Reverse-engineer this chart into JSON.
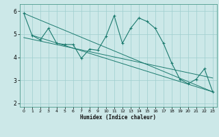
{
  "xlabel": "Humidex (Indice chaleur)",
  "ylabel": "",
  "background_color": "#cce8e8",
  "grid_color": "#9dcece",
  "line_color": "#1a7a6e",
  "xlim": [
    -0.5,
    23.5
  ],
  "ylim": [
    1.85,
    6.3
  ],
  "yticks": [
    2,
    3,
    4,
    5,
    6
  ],
  "xticks": [
    0,
    1,
    2,
    3,
    4,
    5,
    6,
    7,
    8,
    9,
    10,
    11,
    12,
    13,
    14,
    15,
    16,
    17,
    18,
    19,
    20,
    21,
    22,
    23
  ],
  "series1": [
    5.9,
    4.95,
    4.75,
    5.25,
    4.6,
    4.55,
    4.55,
    3.95,
    4.35,
    4.3,
    4.9,
    5.8,
    4.6,
    5.25,
    5.7,
    5.55,
    5.25,
    4.6,
    3.75,
    3.05,
    2.85,
    3.05,
    3.5,
    2.5
  ],
  "series2_x": [
    0,
    23
  ],
  "series2_y": [
    5.9,
    2.5
  ],
  "series3_x": [
    1,
    23
  ],
  "series3_y": [
    4.95,
    2.5
  ],
  "series4_x": [
    0,
    23
  ],
  "series4_y": [
    4.85,
    3.1
  ]
}
